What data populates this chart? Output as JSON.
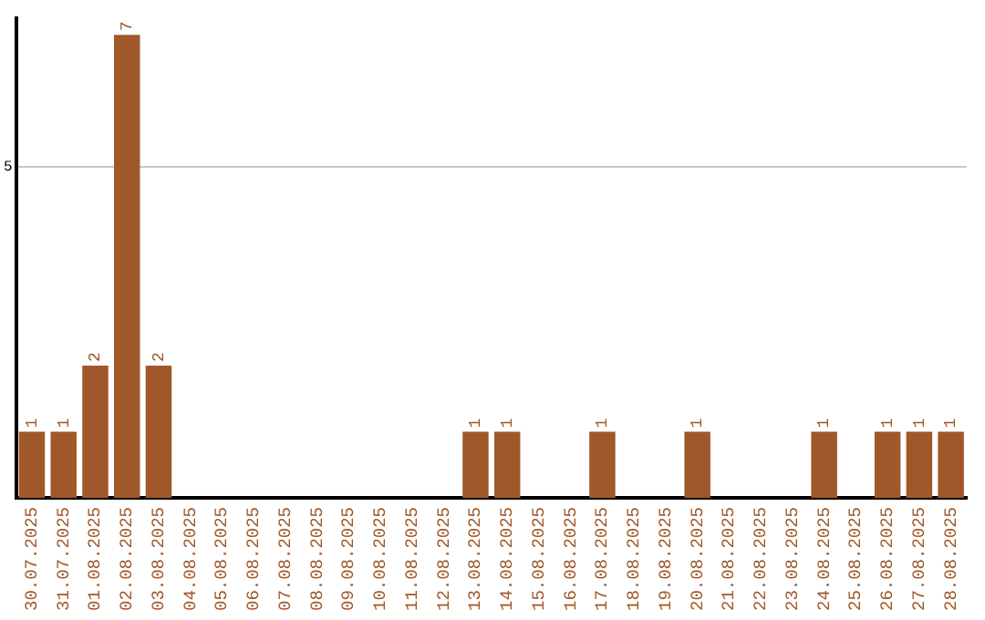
{
  "chart_data": {
    "type": "bar",
    "categories": [
      "30.07.2025",
      "31.07.2025",
      "01.08.2025",
      "02.08.2025",
      "03.08.2025",
      "04.08.2025",
      "05.08.2025",
      "06.08.2025",
      "07.08.2025",
      "08.08.2025",
      "09.08.2025",
      "10.08.2025",
      "11.08.2025",
      "12.08.2025",
      "13.08.2025",
      "14.08.2025",
      "15.08.2025",
      "16.08.2025",
      "17.08.2025",
      "18.08.2025",
      "19.08.2025",
      "20.08.2025",
      "21.08.2025",
      "22.08.2025",
      "23.08.2025",
      "24.08.2025",
      "25.08.2025",
      "26.08.2025",
      "27.08.2025",
      "28.08.2025"
    ],
    "values": [
      1,
      1,
      2,
      7,
      2,
      0,
      0,
      0,
      0,
      0,
      0,
      0,
      0,
      0,
      1,
      1,
      0,
      0,
      1,
      0,
      0,
      1,
      0,
      0,
      0,
      1,
      0,
      1,
      1,
      1
    ],
    "value_labels": [
      "1",
      "1",
      "2",
      "7",
      "2",
      null,
      null,
      null,
      null,
      null,
      null,
      null,
      null,
      null,
      "1",
      "1",
      null,
      null,
      "1",
      null,
      null,
      "1",
      null,
      null,
      null,
      "1",
      null,
      "1",
      "1",
      "1"
    ],
    "color": "#a0582a",
    "ylim": [
      0,
      7.25
    ],
    "yticks": [
      5
    ],
    "grid": "y",
    "legend": false
  }
}
